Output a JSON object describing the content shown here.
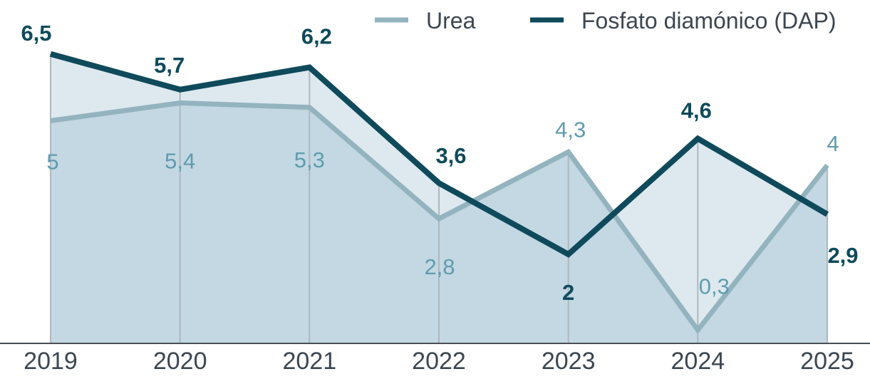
{
  "chart_data": {
    "type": "area",
    "title": "",
    "xlabel": "",
    "ylabel": "",
    "ylim": [
      0,
      7
    ],
    "grid": false,
    "legend_position": "top-right",
    "categories": [
      "2019",
      "2020",
      "2021",
      "2022",
      "2023",
      "2024",
      "2025"
    ],
    "series": [
      {
        "name": "Urea",
        "values": [
          5,
          5.4,
          5.3,
          2.8,
          4.3,
          0.3,
          4
        ],
        "labels": [
          "5",
          "5,4",
          "5,3",
          "2,8",
          "4,3",
          "0,3",
          "4"
        ],
        "color": "#93b3bf",
        "label_color": "#5f9cae"
      },
      {
        "name": "Fosfato diamónico (DAP)",
        "values": [
          6.5,
          5.7,
          6.2,
          3.6,
          2,
          4.6,
          2.9
        ],
        "labels": [
          "6,5",
          "5,7",
          "6,2",
          "3,6",
          "2",
          "4,6",
          "2,9"
        ],
        "color": "#0f4a5b",
        "label_color": "#0f4a5b"
      }
    ]
  }
}
